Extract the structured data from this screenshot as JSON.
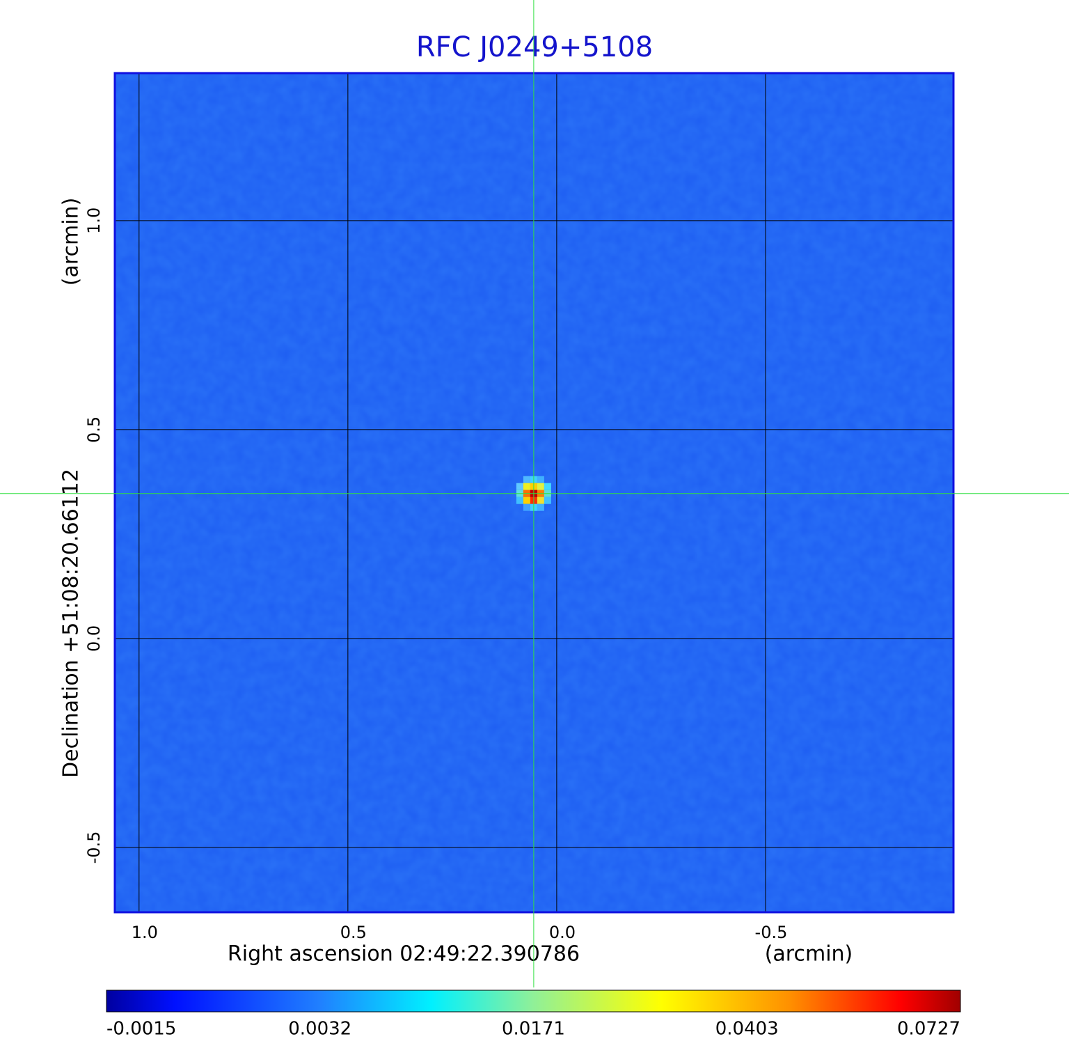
{
  "chart_data": {
    "type": "image",
    "title": "RFC J0249+5108",
    "x_label": "Right ascension  02:49:22.390786",
    "x_unit": "(arcmin)",
    "y_label": "Declination  +51:08:20.66112",
    "y_unit": "(arcmin)",
    "xlim": [
      1.058,
      -0.95
    ],
    "ylim": [
      -0.655,
      1.353
    ],
    "xticks": [
      {
        "value": 1,
        "label": "1.0"
      },
      {
        "value": 0.5,
        "label": "0.5"
      },
      {
        "value": 0,
        "label": "0.0"
      },
      {
        "value": -0.5,
        "label": "-0.5"
      }
    ],
    "yticks": [
      {
        "value": -0.5,
        "label": "-0.5"
      },
      {
        "value": 0,
        "label": "0.0"
      },
      {
        "value": 0.5,
        "label": "0.5"
      },
      {
        "value": 1,
        "label": "1.0"
      }
    ],
    "grid": true,
    "peak": {
      "x": 0.055,
      "y": 0.347
    },
    "colorbar_ticks": [
      -0.0015,
      0.0032,
      0.0171,
      0.0403,
      0.0727
    ]
  }
}
